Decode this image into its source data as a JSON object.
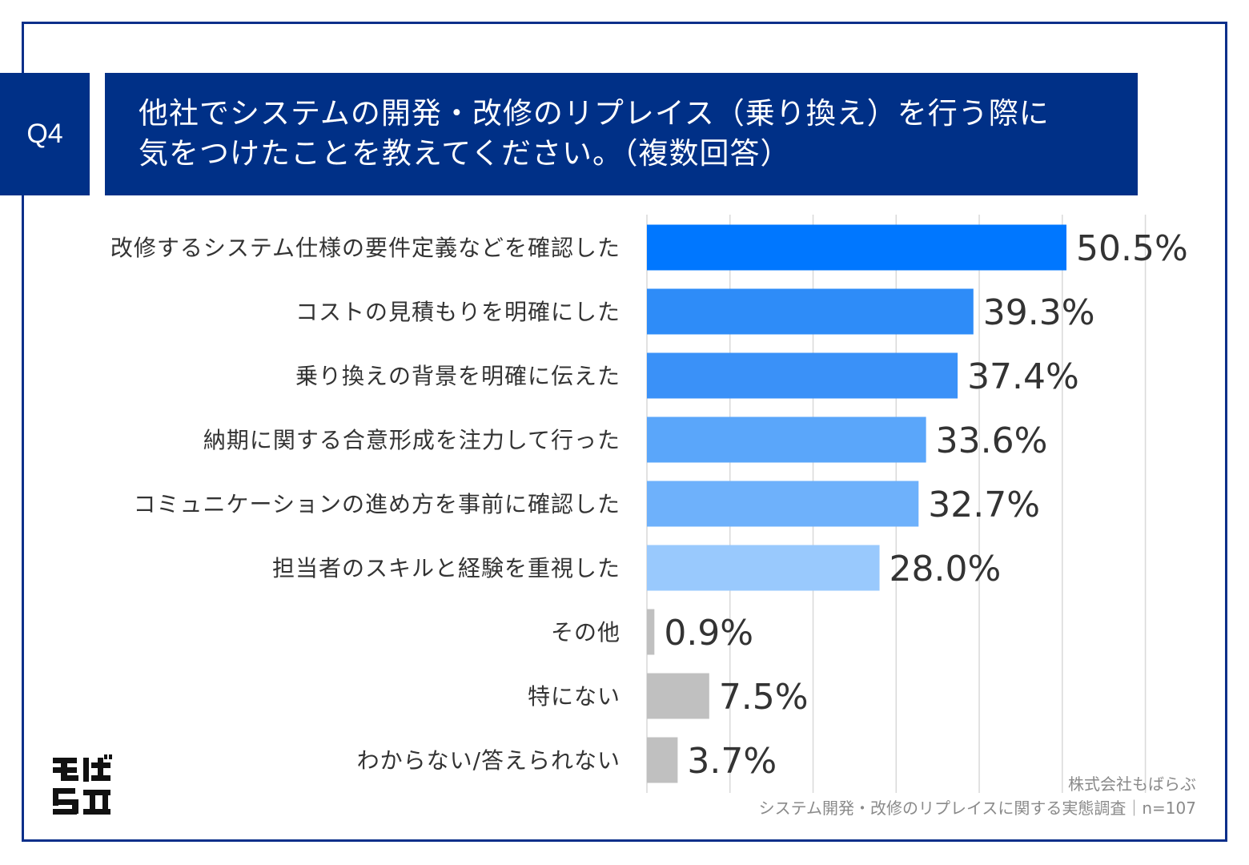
{
  "question": {
    "badge": "Q4",
    "title_line1": "他社でシステムの開発・改修のリプレイス（乗り換え）を行う際に",
    "title_line2": "気をつけたことを教えてください。（複数回答）"
  },
  "chart_data": {
    "type": "bar",
    "orientation": "horizontal",
    "categories": [
      "改修するシステム仕様の要件定義などを確認した",
      "コストの見積もりを明確にした",
      "乗り換えの背景を明確に伝えた",
      "納期に関する合意形成を注力して行った",
      "コミュニケーションの進め方を事前に確認した",
      "担当者のスキルと経験を重視した",
      "その他",
      "特にない",
      "わからない/答えられない"
    ],
    "values": [
      50.5,
      39.3,
      37.4,
      33.6,
      32.7,
      28.0,
      0.9,
      7.5,
      3.7
    ],
    "value_labels": [
      "50.5%",
      "39.3%",
      "37.4%",
      "33.6%",
      "32.7%",
      "28.0%",
      "0.9%",
      "7.5%",
      "3.7%"
    ],
    "colors": [
      "#0077ff",
      "#2e8cf8",
      "#3a91f8",
      "#5aa6fa",
      "#6eb1fb",
      "#99c9fd",
      "#c0c0c0",
      "#c0c0c0",
      "#c0c0c0"
    ],
    "xlim": [
      0,
      60
    ],
    "grid": true
  },
  "footer": {
    "company": "株式会社もばらぶ",
    "survey": "システム開発・改修のリプレイスに関する実態調査｜n=107"
  },
  "logo": {
    "text": "もばらぶ"
  }
}
